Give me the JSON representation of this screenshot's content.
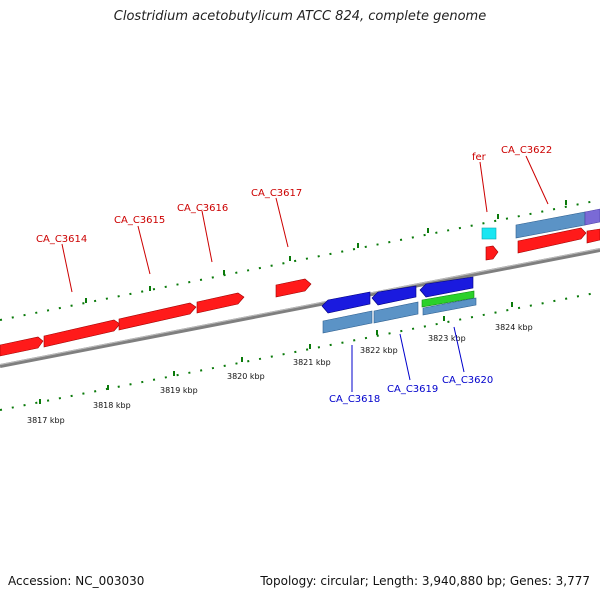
{
  "title": "Clostridium acetobutylicum ATCC 824, complete genome",
  "footer": {
    "accession": "Accession: NC_003030",
    "summary": "Topology: circular; Length: 3,940,880 bp; Genes: 3,777"
  },
  "colors": {
    "forward_gene": "#ff0000",
    "reverse_gene": "#0000ff",
    "forward_label": "#cc0000",
    "reverse_label": "#0000cc",
    "backbone": "#808080",
    "tick": "#0a7a0a"
  },
  "forward_genes": [
    {
      "name": "CA_C3614"
    },
    {
      "name": "CA_C3615"
    },
    {
      "name": "CA_C3616"
    },
    {
      "name": "CA_C3617"
    },
    {
      "name": "fer"
    },
    {
      "name": "CA_C3622"
    }
  ],
  "reverse_genes": [
    {
      "name": "CA_C3618"
    },
    {
      "name": "CA_C3619"
    },
    {
      "name": "CA_C3620"
    }
  ],
  "scale_ticks": [
    "3817 kbp",
    "3818 kbp",
    "3819 kbp",
    "3820 kbp",
    "3821 kbp",
    "3822 kbp",
    "3823 kbp",
    "3824 kbp"
  ]
}
